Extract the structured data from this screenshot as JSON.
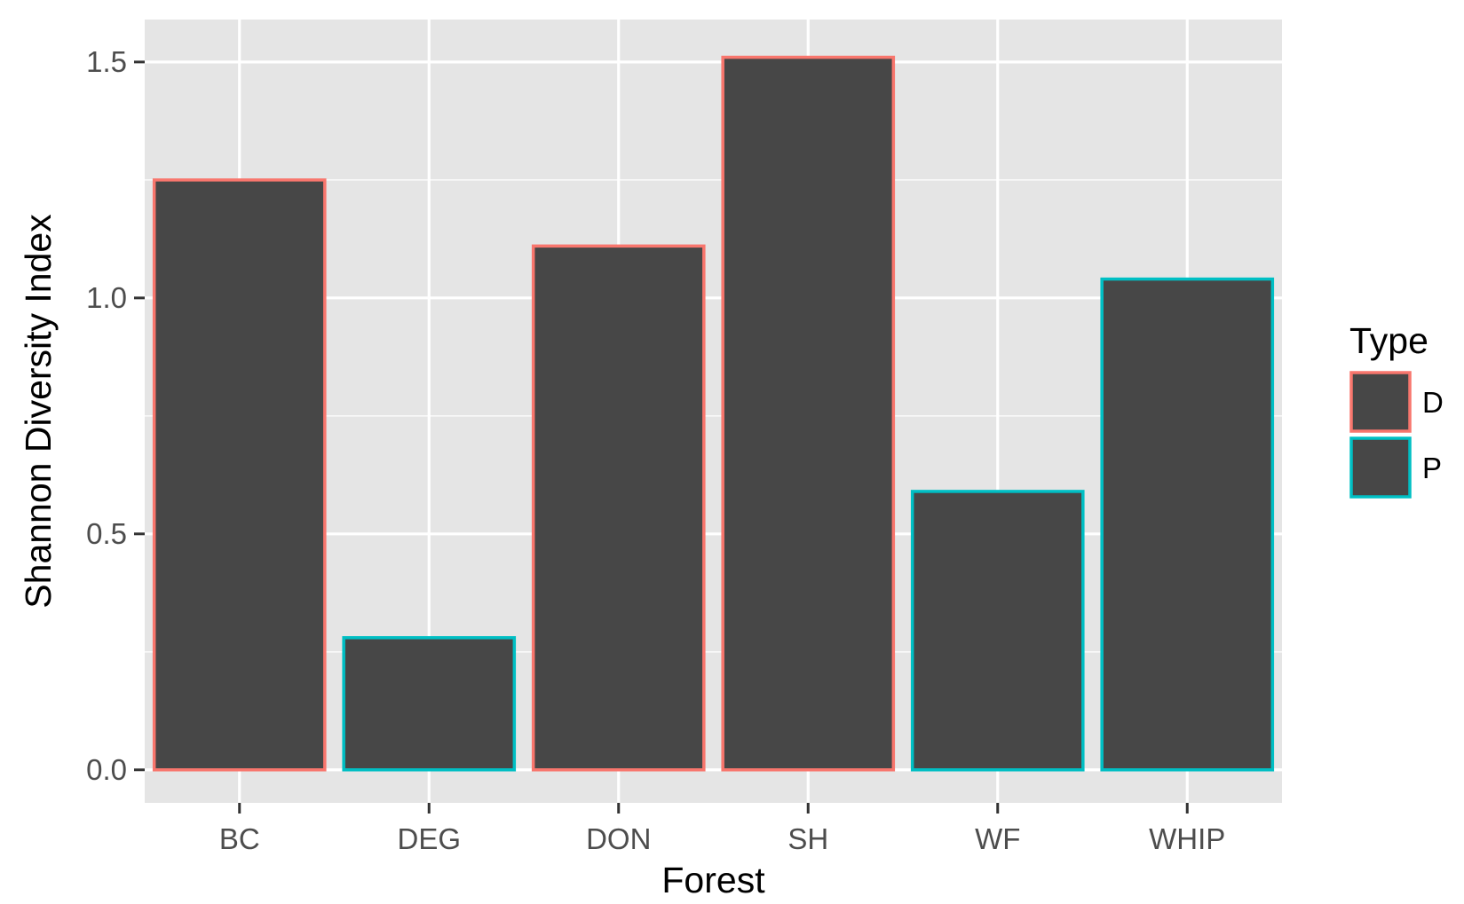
{
  "chart_data": {
    "type": "bar",
    "title": "",
    "xlabel": "Forest",
    "ylabel": "Shannon Diversity Index",
    "categories": [
      "BC",
      "DEG",
      "DON",
      "SH",
      "WF",
      "WHIP"
    ],
    "values": [
      1.25,
      0.28,
      1.11,
      1.51,
      0.59,
      1.04
    ],
    "type_group": [
      "D",
      "P",
      "D",
      "D",
      "P",
      "P"
    ],
    "ylim": [
      -0.07,
      1.59
    ],
    "yticks": [
      0.0,
      0.5,
      1.0,
      1.5
    ],
    "ytick_labels": [
      "0.0",
      "0.5",
      "1.0",
      "1.5"
    ],
    "grid": true,
    "legend": {
      "title": "Type",
      "placement": "right",
      "entries": [
        {
          "label": "D",
          "color": "#F8766D"
        },
        {
          "label": "P",
          "color": "#00BFC4"
        }
      ]
    },
    "colors": {
      "bar_fill": "#474747",
      "panel_background": "#E5E5E5",
      "grid_major": "#FFFFFF",
      "D": "#F8766D",
      "P": "#00BFC4"
    }
  }
}
